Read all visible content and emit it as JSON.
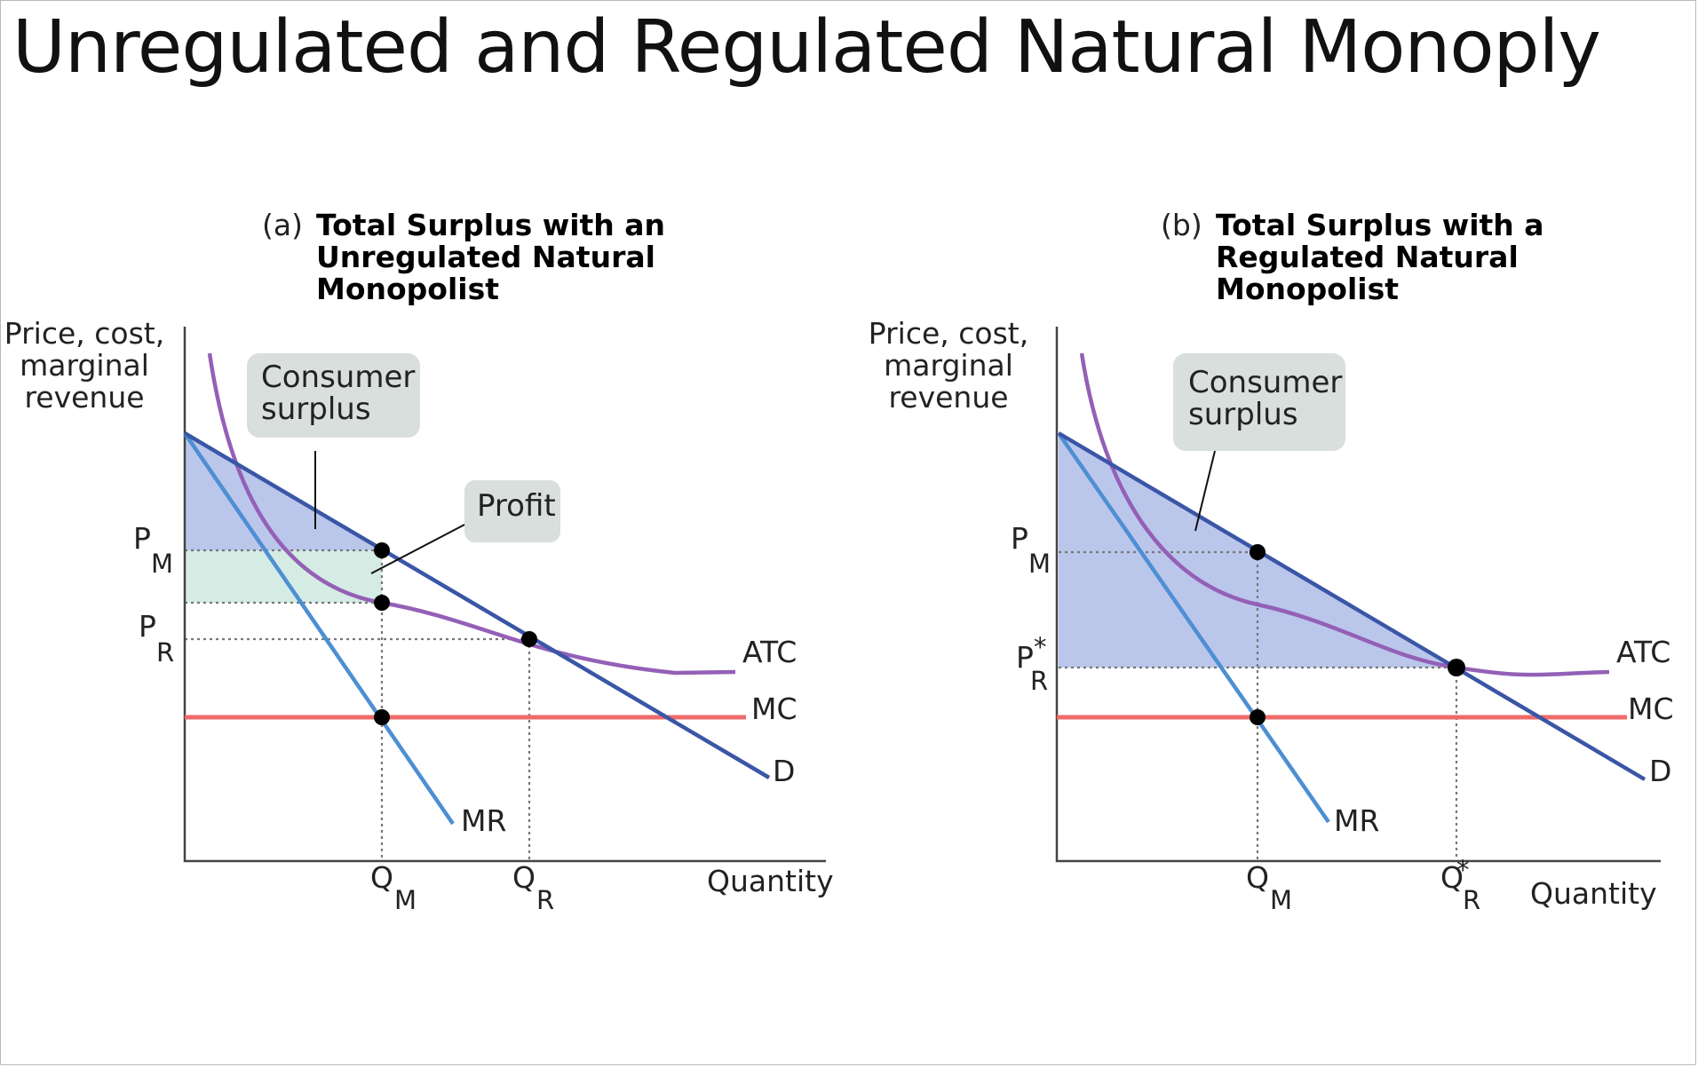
{
  "title": "Unregulated and Regulated Natural Monoply",
  "panels": [
    {
      "prefix": "(a)",
      "title_lines": [
        "Total Surplus with an",
        "Unregulated Natural",
        "Monopolist"
      ],
      "ylabel_lines": [
        "Price, cost,",
        "marginal",
        "revenue"
      ],
      "xlabel": "Quantity",
      "callouts": {
        "consumer_surplus_lines": [
          "Consumer",
          "surplus"
        ],
        "profit": "Profit"
      },
      "labels": {
        "pm": {
          "main": "P",
          "sub": "M"
        },
        "pr": {
          "main": "P",
          "sub": "R"
        },
        "qm": {
          "main": "Q",
          "sub": "M"
        },
        "qr": {
          "main": "Q",
          "sub": "R"
        },
        "atc": "ATC",
        "mc": "MC",
        "d": "D",
        "mr": "MR"
      }
    },
    {
      "prefix": "(b)",
      "title_lines": [
        "Total Surplus with a",
        "Regulated Natural",
        "Monopolist"
      ],
      "ylabel_lines": [
        "Price, cost,",
        "marginal",
        "revenue"
      ],
      "xlabel": "Quantity",
      "callouts": {
        "consumer_surplus_lines": [
          "Consumer",
          "surplus"
        ]
      },
      "labels": {
        "pm": {
          "main": "P",
          "sub": "M"
        },
        "pr": {
          "main": "P",
          "sup": "*",
          "sub": "R"
        },
        "qm": {
          "main": "Q",
          "sub": "M"
        },
        "qr": {
          "main": "Q",
          "sup": "*",
          "sub": "R"
        },
        "atc": "ATC",
        "mc": "MC",
        "d": "D",
        "mr": "MR"
      }
    }
  ],
  "colors": {
    "demand": "#3a56a6",
    "mr": "#4d8fd2",
    "atc": "#9460b6",
    "mc": "#ef6a6a",
    "consumer_surplus_fill": "#b7c3ea",
    "profit_fill": "#d5ece5",
    "callout_fill": "#d8dfdd"
  }
}
